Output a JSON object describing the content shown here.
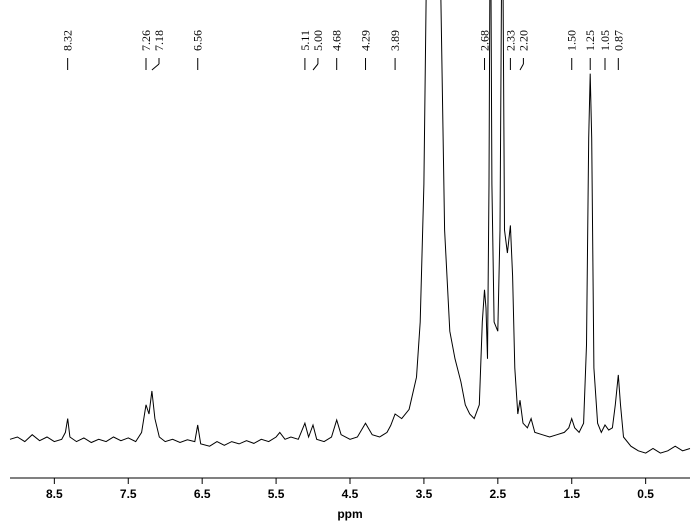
{
  "chart_data": {
    "type": "line",
    "color": "#000000",
    "x_label": "ppm",
    "xlim": [
      9.1,
      -0.1
    ],
    "ylim": [
      0,
      100
    ],
    "xticks": [
      8.5,
      7.5,
      6.5,
      5.5,
      4.5,
      3.5,
      2.5,
      1.5,
      0.5
    ],
    "x": [
      9.1,
      9.0,
      8.9,
      8.8,
      8.7,
      8.6,
      8.5,
      8.4,
      8.35,
      8.32,
      8.29,
      8.2,
      8.1,
      8.0,
      7.9,
      7.8,
      7.7,
      7.6,
      7.5,
      7.4,
      7.32,
      7.26,
      7.22,
      7.18,
      7.14,
      7.08,
      7.0,
      6.9,
      6.8,
      6.7,
      6.6,
      6.56,
      6.52,
      6.4,
      6.3,
      6.2,
      6.1,
      6.0,
      5.9,
      5.8,
      5.7,
      5.6,
      5.5,
      5.45,
      5.38,
      5.3,
      5.2,
      5.11,
      5.06,
      5.0,
      4.95,
      4.85,
      4.75,
      4.68,
      4.62,
      4.5,
      4.4,
      4.29,
      4.2,
      4.1,
      4.0,
      3.95,
      3.89,
      3.8,
      3.7,
      3.6,
      3.55,
      3.5,
      3.47,
      3.44,
      3.3,
      3.27,
      3.22,
      3.15,
      3.08,
      3.0,
      2.94,
      2.88,
      2.82,
      2.75,
      2.71,
      2.68,
      2.66,
      2.64,
      2.62,
      2.6,
      2.58,
      2.55,
      2.5,
      2.47,
      2.44,
      2.41,
      2.37,
      2.33,
      2.3,
      2.27,
      2.23,
      2.2,
      2.16,
      2.1,
      2.05,
      2.0,
      1.9,
      1.8,
      1.7,
      1.6,
      1.54,
      1.5,
      1.46,
      1.4,
      1.34,
      1.3,
      1.27,
      1.25,
      1.23,
      1.2,
      1.15,
      1.1,
      1.05,
      1.0,
      0.95,
      0.91,
      0.87,
      0.84,
      0.8,
      0.7,
      0.6,
      0.5,
      0.4,
      0.3,
      0.2,
      0.1,
      0.0,
      -0.1
    ],
    "values": [
      4.5,
      5,
      4,
      5.5,
      4.2,
      5,
      4,
      4.5,
      6,
      9,
      5,
      4,
      4.8,
      3.8,
      4.5,
      4,
      5,
      4.2,
      4.8,
      4,
      6,
      12,
      10,
      15,
      9,
      5,
      4,
      4.5,
      3.8,
      4.4,
      4,
      7.6,
      3.5,
      3,
      4,
      3.2,
      4,
      3.5,
      4.2,
      3.6,
      4.5,
      4,
      5,
      6,
      4.5,
      5,
      4.5,
      8,
      5,
      7.6,
      4.5,
      4,
      5,
      8.7,
      5.5,
      4.5,
      5,
      8,
      5.5,
      5,
      6,
      7.5,
      10,
      9,
      11,
      18,
      30,
      60,
      100,
      130,
      130,
      100,
      50,
      28,
      22,
      17,
      12,
      10,
      9,
      12,
      30,
      37,
      33,
      22,
      60,
      130,
      60,
      30,
      28,
      50,
      130,
      50,
      45,
      51,
      40,
      20,
      10,
      13,
      8,
      7,
      9,
      6,
      5.5,
      5,
      5.5,
      6,
      7,
      9,
      7,
      6,
      8,
      25,
      70,
      84,
      70,
      20,
      8,
      6,
      7.6,
      6.5,
      7,
      12,
      18.5,
      12,
      5,
      3,
      2,
      1.5,
      2.5,
      1.5,
      2,
      3,
      2,
      2.5
    ],
    "peak_labels": [
      {
        "value": 8.32,
        "label": "8.32"
      },
      {
        "value": 7.26,
        "label": "7.26"
      },
      {
        "value": 7.18,
        "label": "7.18"
      },
      {
        "value": 6.56,
        "label": "6.56"
      },
      {
        "value": 5.11,
        "label": "5.11"
      },
      {
        "value": 5.0,
        "label": "5.00"
      },
      {
        "value": 4.68,
        "label": "4.68"
      },
      {
        "value": 4.29,
        "label": "4.29"
      },
      {
        "value": 3.89,
        "label": "3.89"
      },
      {
        "value": 2.68,
        "label": "2.68"
      },
      {
        "value": 2.33,
        "label": "2.33"
      },
      {
        "value": 2.2,
        "label": "2.20"
      },
      {
        "value": 1.5,
        "label": "1.50"
      },
      {
        "value": 1.25,
        "label": "1.25"
      },
      {
        "value": 1.05,
        "label": "1.05"
      },
      {
        "value": 0.87,
        "label": "0.87"
      }
    ]
  }
}
